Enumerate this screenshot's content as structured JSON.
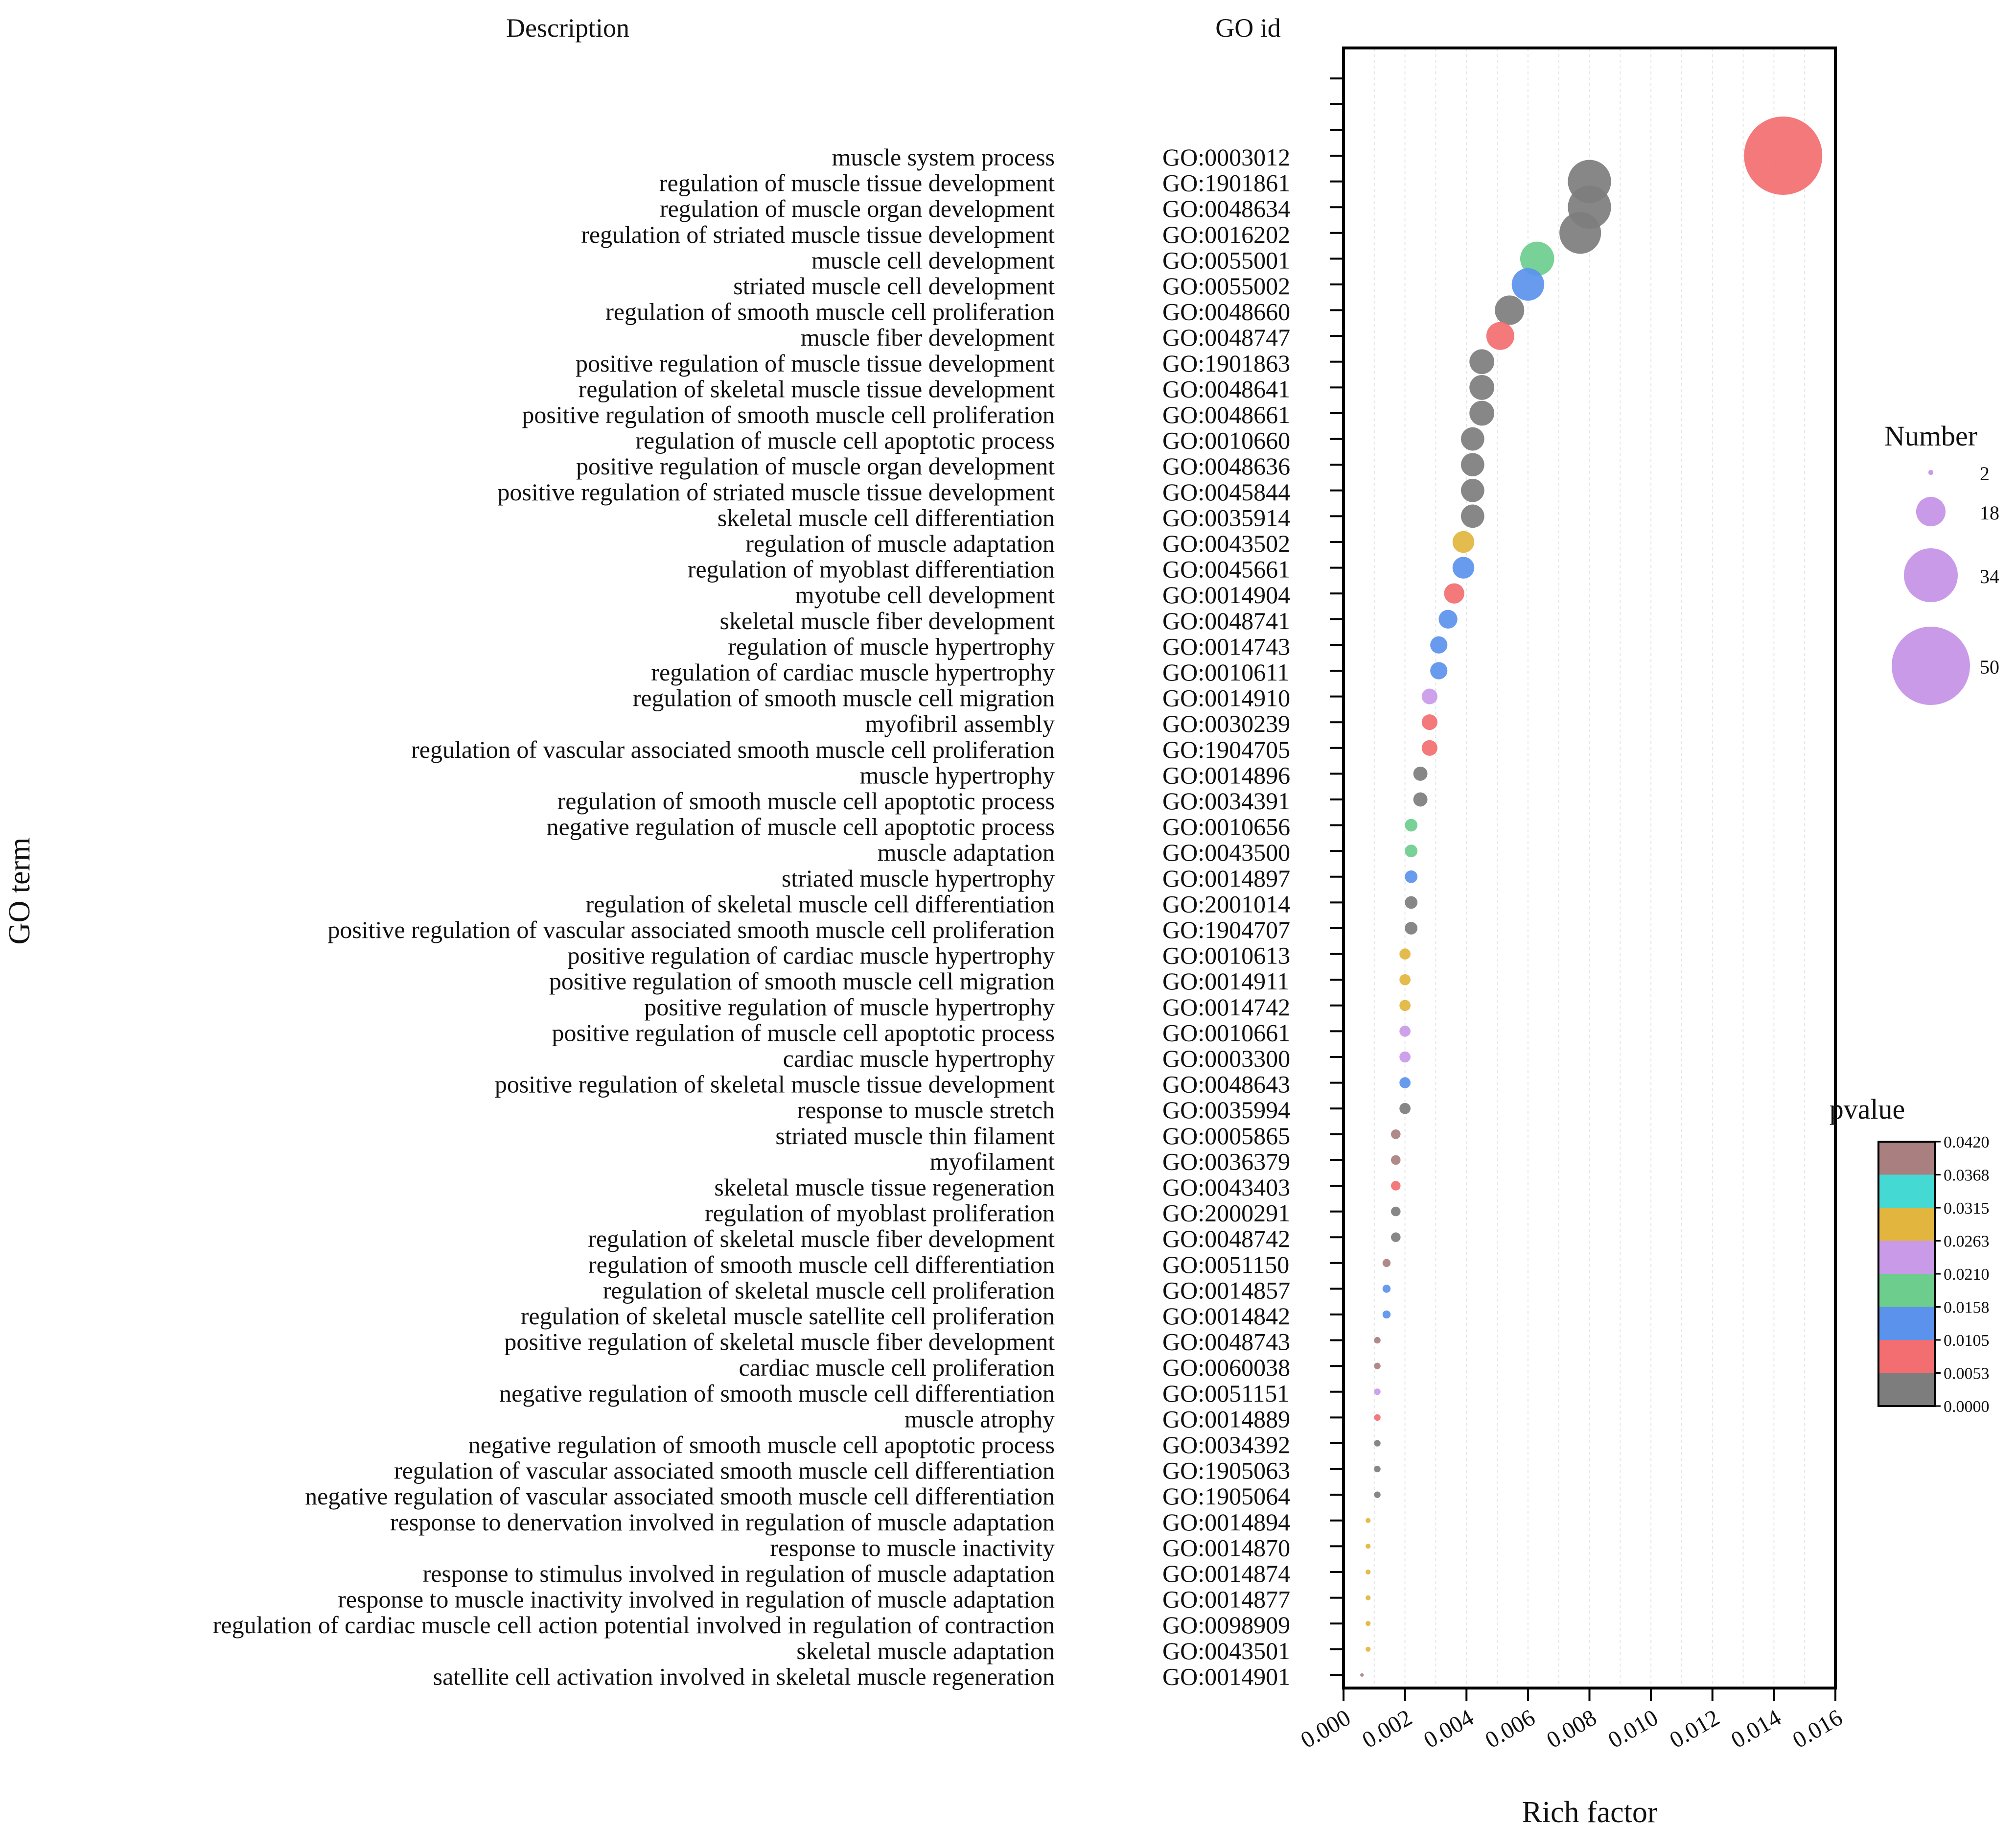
{
  "chart_data": {
    "type": "scatter",
    "column_headers": {
      "description": "Description",
      "go_id": "GO id"
    },
    "xlabel": "Rich factor",
    "ylabel": "GO term",
    "xlim": [
      0,
      0.016
    ],
    "xticks": [
      "0.000",
      "0.002",
      "0.004",
      "0.006",
      "0.008",
      "0.010",
      "0.012",
      "0.014",
      "0.016"
    ],
    "grid": true,
    "size_legend": {
      "title": "Number",
      "values": [
        2,
        18,
        34,
        50
      ]
    },
    "color_legend": {
      "title": "pvalue",
      "labels": [
        "0.0420",
        "0.0368",
        "0.0315",
        "0.0263",
        "0.0210",
        "0.0158",
        "0.0105",
        "0.0053",
        "0.0000"
      ],
      "colors": [
        "#A97F7F",
        "#45D9D4",
        "#E2B53E",
        "#C99AE8",
        "#6DCD8D",
        "#5B93EC",
        "#F26E70",
        "#7D7D7D"
      ]
    },
    "points": [
      {
        "description": "muscle system process",
        "go_id": "GO:0003012",
        "x": 0.0143,
        "number": 50,
        "color": "#F26E70"
      },
      {
        "description": "regulation of muscle tissue development",
        "go_id": "GO:1901861",
        "x": 0.008,
        "number": 27,
        "color": "#7D7D7D"
      },
      {
        "description": "regulation of muscle organ development",
        "go_id": "GO:0048634",
        "x": 0.008,
        "number": 27,
        "color": "#7D7D7D"
      },
      {
        "description": "regulation of striated muscle tissue development",
        "go_id": "GO:0016202",
        "x": 0.0077,
        "number": 26,
        "color": "#7D7D7D"
      },
      {
        "description": "muscle cell development",
        "go_id": "GO:0055001",
        "x": 0.0063,
        "number": 21,
        "color": "#6DCD8D"
      },
      {
        "description": "striated muscle cell development",
        "go_id": "GO:0055002",
        "x": 0.006,
        "number": 20,
        "color": "#5B93EC"
      },
      {
        "description": "regulation of smooth muscle cell proliferation",
        "go_id": "GO:0048660",
        "x": 0.0054,
        "number": 18,
        "color": "#7D7D7D"
      },
      {
        "description": "muscle fiber development",
        "go_id": "GO:0048747",
        "x": 0.0051,
        "number": 17,
        "color": "#F26E70"
      },
      {
        "description": "positive regulation of muscle tissue development",
        "go_id": "GO:1901863",
        "x": 0.0045,
        "number": 15,
        "color": "#7D7D7D"
      },
      {
        "description": "regulation of skeletal muscle tissue development",
        "go_id": "GO:0048641",
        "x": 0.0045,
        "number": 15,
        "color": "#7D7D7D"
      },
      {
        "description": "positive regulation of smooth muscle cell proliferation",
        "go_id": "GO:0048661",
        "x": 0.0045,
        "number": 15,
        "color": "#7D7D7D"
      },
      {
        "description": "regulation of muscle cell apoptotic process",
        "go_id": "GO:0010660",
        "x": 0.0042,
        "number": 14,
        "color": "#7D7D7D"
      },
      {
        "description": "positive regulation of muscle organ development",
        "go_id": "GO:0048636",
        "x": 0.0042,
        "number": 14,
        "color": "#7D7D7D"
      },
      {
        "description": "positive regulation of striated muscle tissue development",
        "go_id": "GO:0045844",
        "x": 0.0042,
        "number": 14,
        "color": "#7D7D7D"
      },
      {
        "description": "skeletal muscle cell differentiation",
        "go_id": "GO:0035914",
        "x": 0.0042,
        "number": 14,
        "color": "#7D7D7D"
      },
      {
        "description": "regulation of muscle adaptation",
        "go_id": "GO:0043502",
        "x": 0.0039,
        "number": 13,
        "color": "#E2B53E"
      },
      {
        "description": "regulation of myoblast differentiation",
        "go_id": "GO:0045661",
        "x": 0.0039,
        "number": 13,
        "color": "#5B93EC"
      },
      {
        "description": "myotube cell development",
        "go_id": "GO:0014904",
        "x": 0.0036,
        "number": 12,
        "color": "#F26E70"
      },
      {
        "description": "skeletal muscle fiber development",
        "go_id": "GO:0048741",
        "x": 0.0034,
        "number": 11,
        "color": "#5B93EC"
      },
      {
        "description": "regulation of muscle hypertrophy",
        "go_id": "GO:0014743",
        "x": 0.0031,
        "number": 10,
        "color": "#5B93EC"
      },
      {
        "description": "regulation of cardiac muscle hypertrophy",
        "go_id": "GO:0010611",
        "x": 0.0031,
        "number": 10,
        "color": "#5B93EC"
      },
      {
        "description": "regulation of smooth muscle cell migration",
        "go_id": "GO:0014910",
        "x": 0.0028,
        "number": 9,
        "color": "#C99AE8"
      },
      {
        "description": "myofibril assembly",
        "go_id": "GO:0030239",
        "x": 0.0028,
        "number": 9,
        "color": "#F26E70"
      },
      {
        "description": "regulation of vascular associated smooth muscle cell proliferation",
        "go_id": "GO:1904705",
        "x": 0.0028,
        "number": 9,
        "color": "#F26E70"
      },
      {
        "description": "muscle hypertrophy",
        "go_id": "GO:0014896",
        "x": 0.0025,
        "number": 8,
        "color": "#7D7D7D"
      },
      {
        "description": "regulation of smooth muscle cell apoptotic process",
        "go_id": "GO:0034391",
        "x": 0.0025,
        "number": 8,
        "color": "#7D7D7D"
      },
      {
        "description": "negative regulation of muscle cell apoptotic process",
        "go_id": "GO:0010656",
        "x": 0.0022,
        "number": 7,
        "color": "#6DCD8D"
      },
      {
        "description": "muscle adaptation",
        "go_id": "GO:0043500",
        "x": 0.0022,
        "number": 7,
        "color": "#6DCD8D"
      },
      {
        "description": "striated muscle hypertrophy",
        "go_id": "GO:0014897",
        "x": 0.0022,
        "number": 7,
        "color": "#5B93EC"
      },
      {
        "description": "regulation of skeletal muscle cell differentiation",
        "go_id": "GO:2001014",
        "x": 0.0022,
        "number": 7,
        "color": "#7D7D7D"
      },
      {
        "description": "positive regulation of vascular associated smooth muscle cell proliferation",
        "go_id": "GO:1904707",
        "x": 0.0022,
        "number": 7,
        "color": "#7D7D7D"
      },
      {
        "description": "positive regulation of cardiac muscle hypertrophy",
        "go_id": "GO:0010613",
        "x": 0.002,
        "number": 6,
        "color": "#E2B53E"
      },
      {
        "description": "positive regulation of smooth muscle cell migration",
        "go_id": "GO:0014911",
        "x": 0.002,
        "number": 6,
        "color": "#E2B53E"
      },
      {
        "description": "positive regulation of muscle hypertrophy",
        "go_id": "GO:0014742",
        "x": 0.002,
        "number": 6,
        "color": "#E2B53E"
      },
      {
        "description": "positive regulation of muscle cell apoptotic process",
        "go_id": "GO:0010661",
        "x": 0.002,
        "number": 6,
        "color": "#C99AE8"
      },
      {
        "description": "cardiac muscle hypertrophy",
        "go_id": "GO:0003300",
        "x": 0.002,
        "number": 6,
        "color": "#C99AE8"
      },
      {
        "description": "positive regulation of skeletal muscle tissue development",
        "go_id": "GO:0048643",
        "x": 0.002,
        "number": 6,
        "color": "#5B93EC"
      },
      {
        "description": "response to muscle stretch",
        "go_id": "GO:0035994",
        "x": 0.002,
        "number": 6,
        "color": "#7D7D7D"
      },
      {
        "description": "striated muscle thin filament",
        "go_id": "GO:0005865",
        "x": 0.0017,
        "number": 5,
        "color": "#A97F7F"
      },
      {
        "description": "myofilament",
        "go_id": "GO:0036379",
        "x": 0.0017,
        "number": 5,
        "color": "#A97F7F"
      },
      {
        "description": "skeletal muscle tissue regeneration",
        "go_id": "GO:0043403",
        "x": 0.0017,
        "number": 5,
        "color": "#F26E70"
      },
      {
        "description": "regulation of myoblast proliferation",
        "go_id": "GO:2000291",
        "x": 0.0017,
        "number": 5,
        "color": "#7D7D7D"
      },
      {
        "description": "regulation of skeletal muscle fiber development",
        "go_id": "GO:0048742",
        "x": 0.0017,
        "number": 5,
        "color": "#7D7D7D"
      },
      {
        "description": "regulation of smooth muscle cell differentiation",
        "go_id": "GO:0051150",
        "x": 0.0014,
        "number": 4,
        "color": "#A97F7F"
      },
      {
        "description": "regulation of skeletal muscle cell proliferation",
        "go_id": "GO:0014857",
        "x": 0.0014,
        "number": 4,
        "color": "#5B93EC"
      },
      {
        "description": "regulation of skeletal muscle satellite cell proliferation",
        "go_id": "GO:0014842",
        "x": 0.0014,
        "number": 4,
        "color": "#5B93EC"
      },
      {
        "description": "positive regulation of skeletal muscle fiber development",
        "go_id": "GO:0048743",
        "x": 0.0011,
        "number": 3,
        "color": "#A97F7F"
      },
      {
        "description": "cardiac muscle cell proliferation",
        "go_id": "GO:0060038",
        "x": 0.0011,
        "number": 3,
        "color": "#A97F7F"
      },
      {
        "description": "negative regulation of smooth muscle cell differentiation",
        "go_id": "GO:0051151",
        "x": 0.0011,
        "number": 3,
        "color": "#C99AE8"
      },
      {
        "description": "muscle atrophy",
        "go_id": "GO:0014889",
        "x": 0.0011,
        "number": 3,
        "color": "#F26E70"
      },
      {
        "description": "negative regulation of smooth muscle cell apoptotic process",
        "go_id": "GO:0034392",
        "x": 0.0011,
        "number": 3,
        "color": "#7D7D7D"
      },
      {
        "description": "regulation of vascular associated smooth muscle cell differentiation",
        "go_id": "GO:1905063",
        "x": 0.0011,
        "number": 3,
        "color": "#7D7D7D"
      },
      {
        "description": "negative regulation of vascular associated smooth muscle cell differentiation",
        "go_id": "GO:1905064",
        "x": 0.0011,
        "number": 3,
        "color": "#7D7D7D"
      },
      {
        "description": "response to denervation involved in regulation of muscle adaptation",
        "go_id": "GO:0014894",
        "x": 0.0008,
        "number": 2,
        "color": "#E2B53E"
      },
      {
        "description": "response to muscle inactivity",
        "go_id": "GO:0014870",
        "x": 0.0008,
        "number": 2,
        "color": "#E2B53E"
      },
      {
        "description": "response to stimulus involved in regulation of muscle adaptation",
        "go_id": "GO:0014874",
        "x": 0.0008,
        "number": 2,
        "color": "#E2B53E"
      },
      {
        "description": "response to muscle inactivity involved in regulation of muscle adaptation",
        "go_id": "GO:0014877",
        "x": 0.0008,
        "number": 2,
        "color": "#E2B53E"
      },
      {
        "description": "regulation of cardiac muscle cell action potential involved in regulation of contraction",
        "go_id": "GO:0098909",
        "x": 0.0008,
        "number": 2,
        "color": "#E2B53E"
      },
      {
        "description": "skeletal muscle adaptation",
        "go_id": "GO:0043501",
        "x": 0.0008,
        "number": 2,
        "color": "#E2B53E"
      },
      {
        "description": "satellite cell activation involved in skeletal muscle regeneration",
        "go_id": "GO:0014901",
        "x": 0.0006,
        "number": 1,
        "color": "#A97F7F"
      }
    ]
  }
}
